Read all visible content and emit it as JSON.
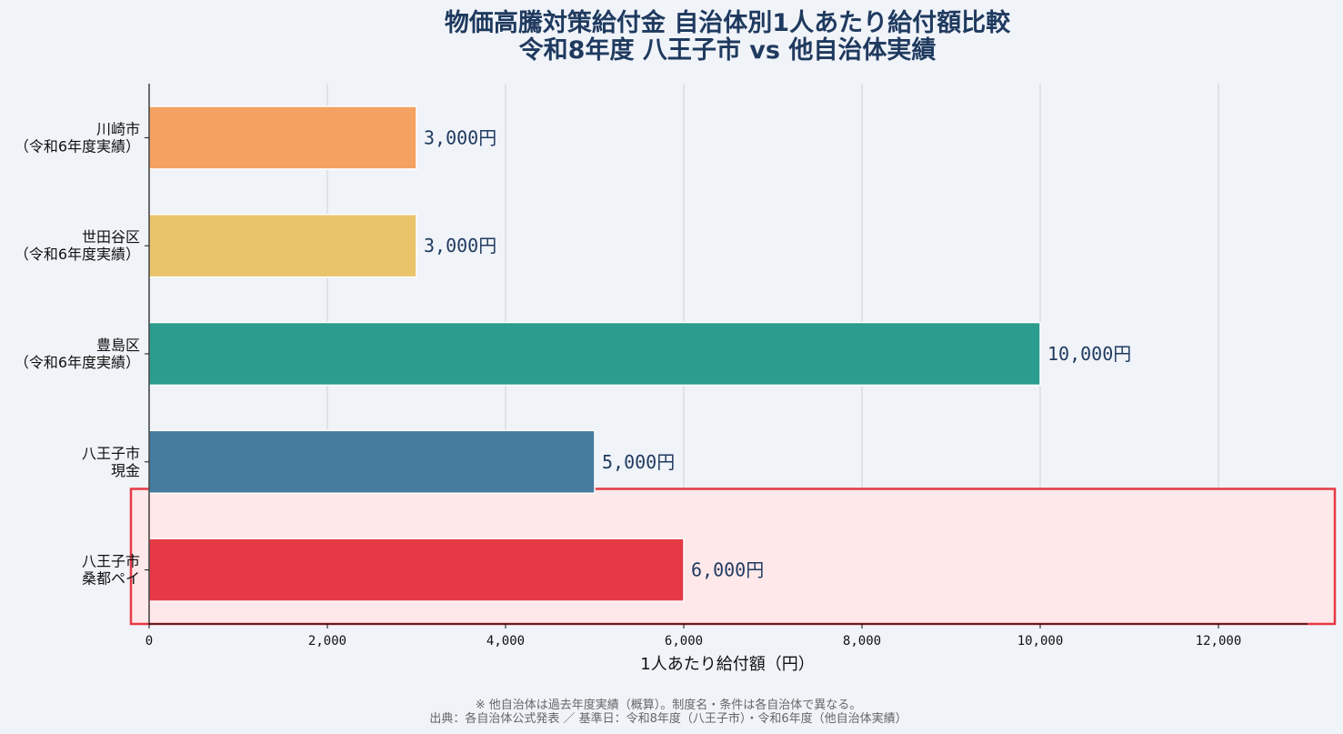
{
  "chart_data": {
    "type": "bar",
    "orientation": "horizontal",
    "title_line1": "物価高騰対策給付金 自治体別1人あたり給付額比較",
    "title_line2": "令和8年度 八王子市 vs 他自治体実績",
    "xlabel": "1人あたり給付額（円）",
    "xlim": [
      0,
      13000
    ],
    "xticks": [
      0,
      2000,
      4000,
      6000,
      8000,
      10000,
      12000
    ],
    "xtick_labels": [
      "0",
      "2,000",
      "4,000",
      "6,000",
      "8,000",
      "10,000",
      "12,000"
    ],
    "grid": "vertical",
    "categories": [
      {
        "line1": "川崎市",
        "line2": "（令和6年度実績）",
        "value": 3000,
        "label": "3,000円",
        "color": "#f4a261"
      },
      {
        "line1": "世田谷区",
        "line2": "（令和6年度実績）",
        "value": 3000,
        "label": "3,000円",
        "color": "#e9c46a"
      },
      {
        "line1": "豊島区",
        "line2": "（令和6年度実績）",
        "value": 10000,
        "label": "10,000円",
        "color": "#2a9d8f"
      },
      {
        "line1": "八王子市",
        "line2": "現金",
        "value": 5000,
        "label": "5,000円",
        "color": "#457b9d"
      },
      {
        "line1": "八王子市",
        "line2": "桑都ペイ",
        "value": 6000,
        "label": "6,000円",
        "color": "#e63946"
      }
    ],
    "highlight": {
      "category_index": 4,
      "fill": "#ffe8ea",
      "stroke": "#e63946"
    }
  },
  "footnote": {
    "line1": "※ 他自治体は過去年度実績（概算）。制度名・条件は各自治体で異なる。",
    "line2": "出典：各自治体公式発表 ／ 基準日：令和8年度（八王子市）・令和6年度（他自治体実績）"
  }
}
